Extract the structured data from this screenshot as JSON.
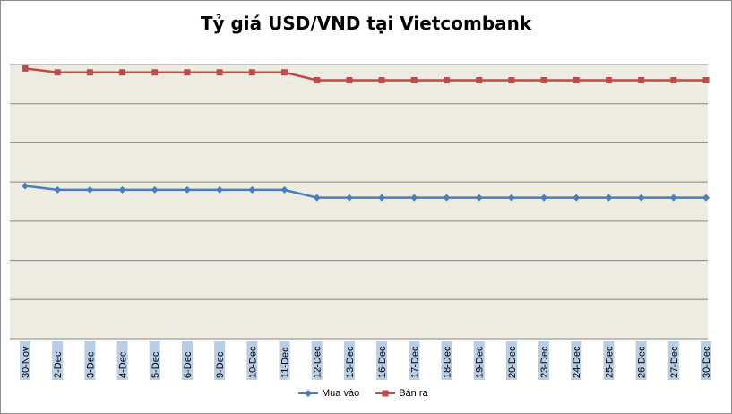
{
  "chart_data": {
    "type": "line",
    "title": "Tỷ giá USD/VND tại Vietcombank",
    "xlabel": "",
    "ylabel": "",
    "categories": [
      "30-Nov",
      "2-Dec",
      "3-Dec",
      "4-Dec",
      "5-Dec",
      "6-Dec",
      "9-Dec",
      "10-Dec",
      "11-Dec",
      "12-Dec",
      "13-Dec",
      "16-Dec",
      "17-Dec",
      "18-Dec",
      "19-Dec",
      "20-Dec",
      "23-Dec",
      "24-Dec",
      "25-Dec",
      "26-Dec",
      "27-Dec",
      "30-Dec"
    ],
    "ylim": [
      0,
      7
    ],
    "grid": true,
    "legend_position": "bottom",
    "series": [
      {
        "name": "Mua vào",
        "color": "#4a7ebb",
        "marker": "diamond",
        "values": [
          3.9,
          3.8,
          3.8,
          3.8,
          3.8,
          3.8,
          3.8,
          3.8,
          3.8,
          3.6,
          3.6,
          3.6,
          3.6,
          3.6,
          3.6,
          3.6,
          3.6,
          3.6,
          3.6,
          3.6,
          3.6,
          3.6
        ]
      },
      {
        "name": "Bán ra",
        "color": "#be4b48",
        "marker": "square",
        "values": [
          6.9,
          6.8,
          6.8,
          6.8,
          6.8,
          6.8,
          6.8,
          6.8,
          6.8,
          6.6,
          6.6,
          6.6,
          6.6,
          6.6,
          6.6,
          6.6,
          6.6,
          6.6,
          6.6,
          6.6,
          6.6,
          6.6
        ]
      }
    ]
  },
  "style": {
    "plot_background": "#eeece1",
    "gridline_color": "#868686",
    "tick_label_background": "#b9cde5"
  }
}
